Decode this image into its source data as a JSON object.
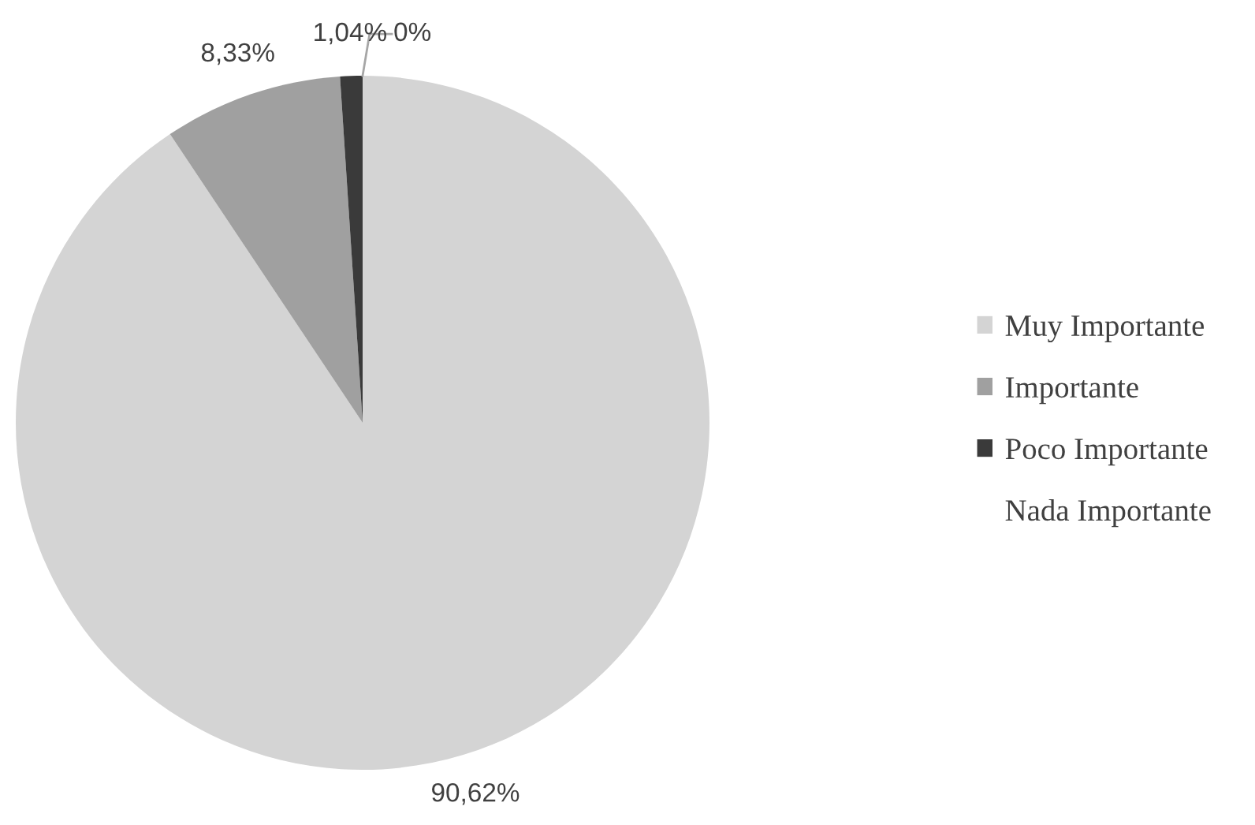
{
  "chart_data": {
    "type": "pie",
    "categories": [
      "Muy Importante",
      "Importante",
      "Poco Importante",
      "Nada Importante"
    ],
    "values": [
      90.62,
      8.33,
      1.04,
      0
    ],
    "colors": [
      "#d4d4d4",
      "#a0a0a0",
      "#3a3a3a",
      "#ffffff"
    ],
    "value_labels": [
      "90,62%",
      "8,33%",
      "1,04%",
      "0%"
    ],
    "legend": "right"
  }
}
